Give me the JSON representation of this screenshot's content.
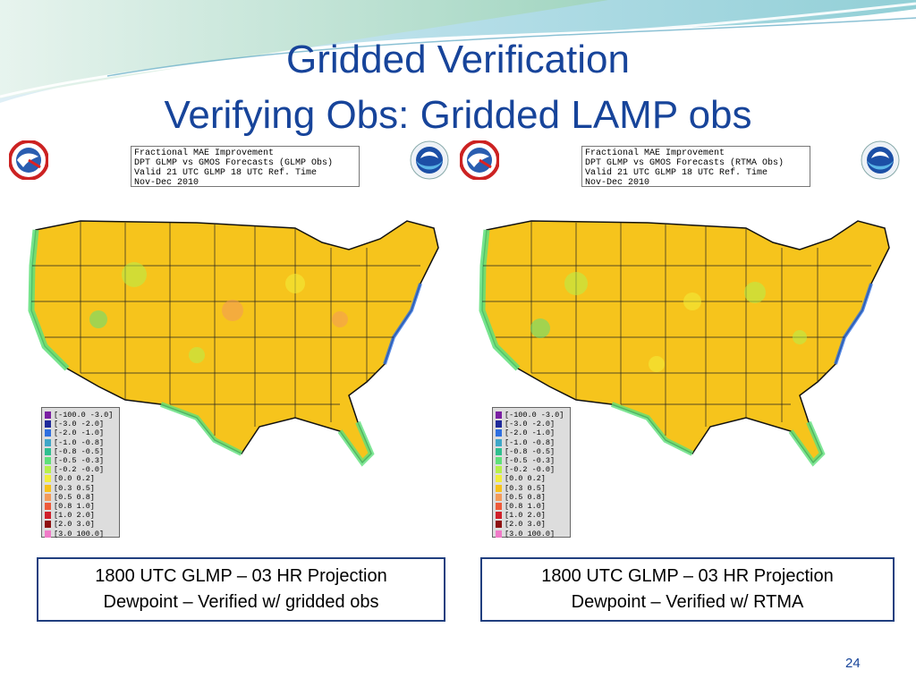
{
  "slide": {
    "title_line1": "Gridded Verification",
    "title_line2": "Verifying Obs: Gridded LAMP obs",
    "page_number": "24"
  },
  "panels": [
    {
      "info_lines": [
        "Fractional MAE Improvement",
        "DPT GLMP vs GMOS Forecasts (GLMP Obs)",
        "Valid 21 UTC GLMP 18 UTC Ref. Time",
        "Nov-Dec 2010"
      ],
      "caption_line1": "1800 UTC GLMP – 03 HR Projection",
      "caption_line2": "Dewpoint – Verified w/ gridded obs"
    },
    {
      "info_lines": [
        "Fractional MAE Improvement",
        "DPT GLMP vs GMOS Forecasts (RTMA Obs)",
        "Valid 21 UTC GLMP 18 UTC Ref. Time",
        "Nov-Dec 2010"
      ],
      "caption_line1": "1800 UTC GLMP – 03 HR Projection",
      "caption_line2": "Dewpoint – Verified w/ RTMA"
    }
  ],
  "legend": [
    {
      "label": "[-100.0 -3.0]",
      "color": "#7a1fa2"
    },
    {
      "label": "[-3.0 -2.0]",
      "color": "#1f2a9a"
    },
    {
      "label": "[-2.0 -1.0]",
      "color": "#2f6fe0"
    },
    {
      "label": "[-1.0 -0.8]",
      "color": "#3fa7c8"
    },
    {
      "label": "[-0.8 -0.5]",
      "color": "#2fbf8f"
    },
    {
      "label": "[-0.5 -0.3]",
      "color": "#5fe07a"
    },
    {
      "label": "[-0.2 -0.0]",
      "color": "#b6f04a"
    },
    {
      "label": "[0.0 0.2]",
      "color": "#f2ee3a"
    },
    {
      "label": "[0.3 0.5]",
      "color": "#f7c21a"
    },
    {
      "label": "[0.5 0.8]",
      "color": "#f49a5a"
    },
    {
      "label": "[0.8 1.0]",
      "color": "#ee5a3a"
    },
    {
      "label": "[1.0 2.0]",
      "color": "#d0202a"
    },
    {
      "label": "[2.0 3.0]",
      "color": "#8e1010"
    },
    {
      "label": "[3.0 100.0]",
      "color": "#f07ac8"
    }
  ],
  "colors": {
    "title": "#17449a",
    "caption_border": "#213f7f",
    "map_fill": "#f6c41c",
    "map_border": "#111111",
    "coast_low": "#5fe07a",
    "coast_lower": "#2f6fe0"
  },
  "icons": [
    "nws-logo-icon",
    "noaa-logo-icon",
    "us-map-icon"
  ]
}
